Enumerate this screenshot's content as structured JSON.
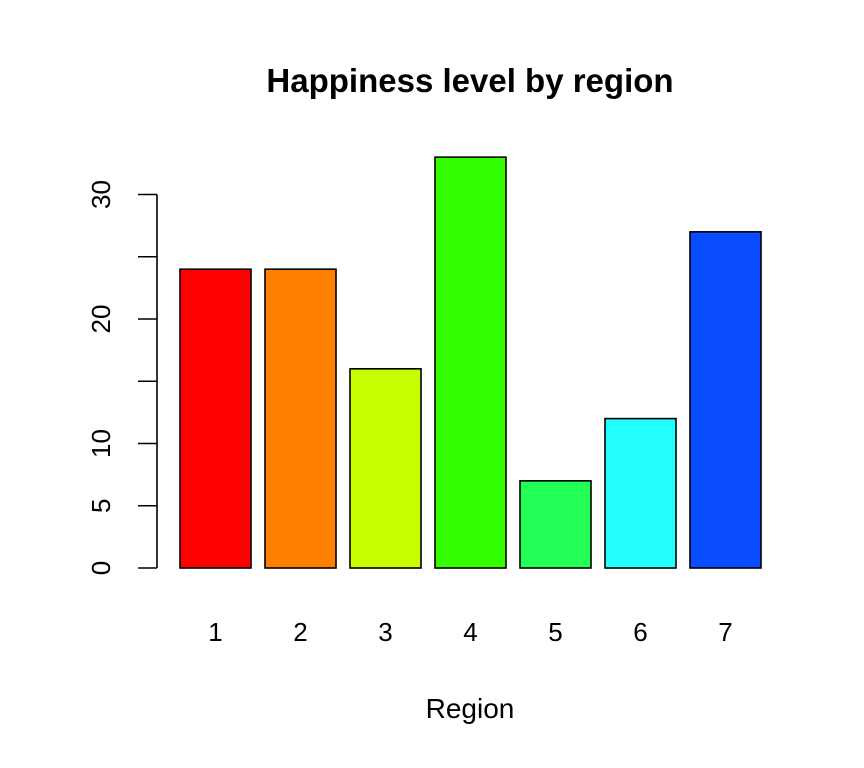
{
  "chart_data": {
    "type": "bar",
    "title": "Happiness level by region",
    "xlabel": "Region",
    "ylabel": "",
    "categories": [
      "1",
      "2",
      "3",
      "4",
      "5",
      "6",
      "7"
    ],
    "values": [
      24,
      24,
      16,
      33,
      7,
      12,
      27
    ],
    "colors": [
      "#ff0000",
      "#ff8000",
      "#c8ff00",
      "#33ff00",
      "#22ff55",
      "#22ffff",
      "#0a4cff"
    ],
    "ylim": [
      0,
      33
    ],
    "yticks": [
      0,
      5,
      10,
      15,
      20,
      25,
      30
    ],
    "ytick_labels": [
      "0",
      "5",
      "10",
      "",
      "20",
      "",
      "30"
    ],
    "grid": false,
    "legend": "none"
  }
}
